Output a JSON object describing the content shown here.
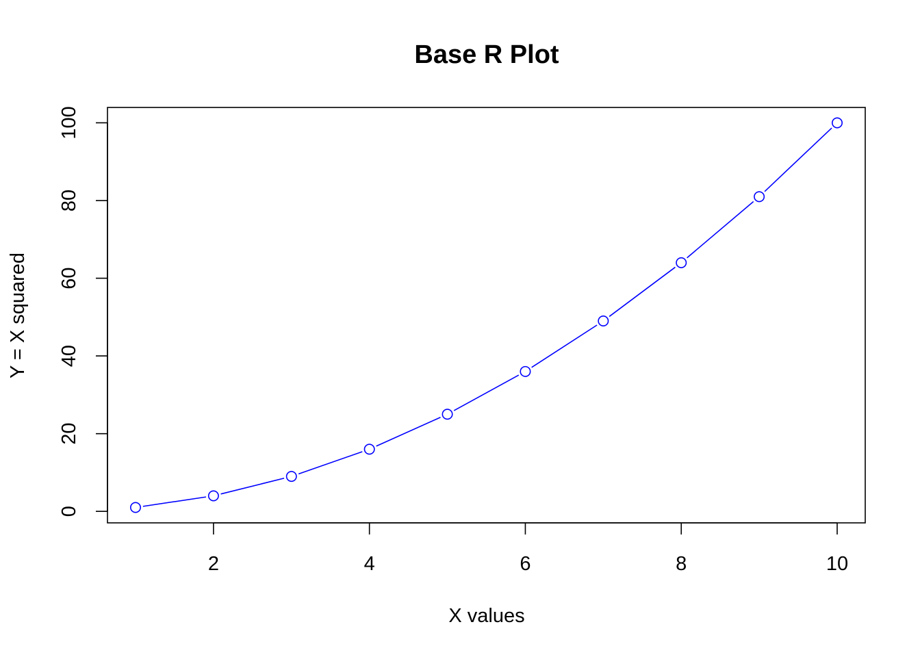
{
  "chart_data": {
    "type": "line",
    "title": "Base R Plot",
    "xlabel": "X values",
    "ylabel": "Y = X squared",
    "x": [
      1,
      2,
      3,
      4,
      5,
      6,
      7,
      8,
      9,
      10
    ],
    "series": [
      {
        "values": [
          1,
          4,
          9,
          16,
          25,
          36,
          49,
          64,
          81,
          100
        ],
        "color": "#0000ff",
        "marker": "open-circle"
      }
    ],
    "xlim": [
      0.64,
      10.36
    ],
    "ylim": [
      -2.96,
      103.96
    ],
    "x_ticks": [
      2,
      4,
      6,
      8,
      10
    ],
    "y_ticks": [
      0,
      20,
      40,
      60,
      80,
      100
    ],
    "grid": false,
    "legend": false
  }
}
